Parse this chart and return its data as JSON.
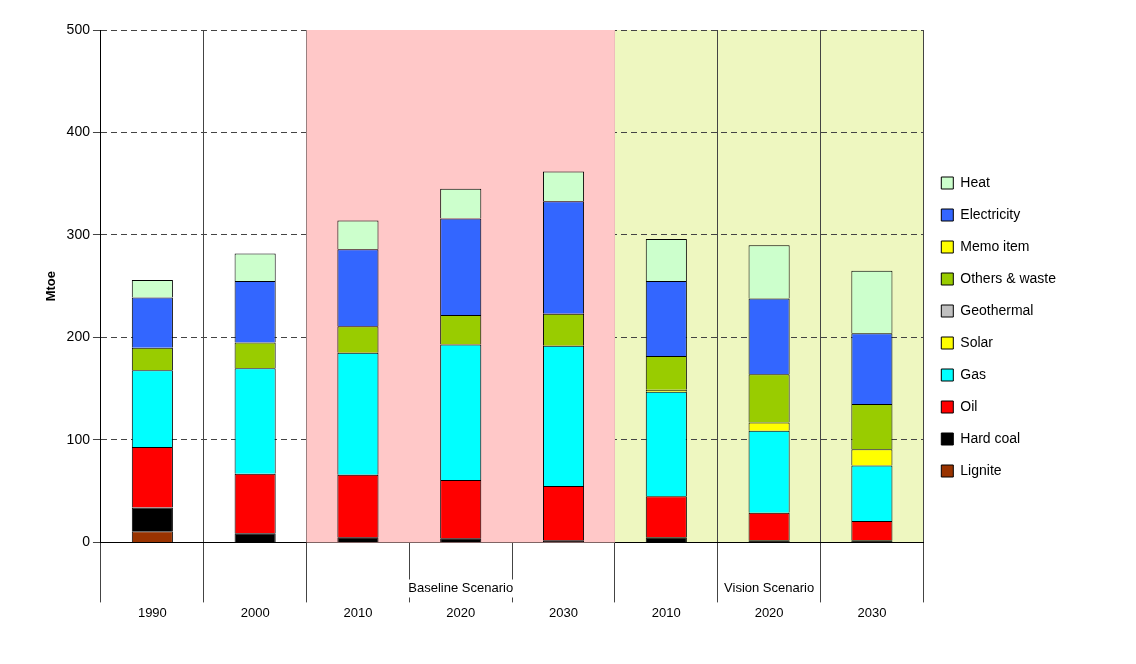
{
  "chart_data": {
    "type": "bar",
    "stacked": true,
    "ylabel": "Mtoe",
    "categories": [
      "1990",
      "2000",
      "2010",
      "2020",
      "2030",
      "2010",
      "2020",
      "2030"
    ],
    "series": [
      {
        "name": "Lignite",
        "color": "#993300",
        "values": [
          11,
          0,
          0,
          0,
          0,
          0,
          0,
          0
        ]
      },
      {
        "name": "Hard coal",
        "color": "#000000",
        "values": [
          23,
          9,
          5,
          4,
          2,
          5,
          2,
          2
        ]
      },
      {
        "name": "Oil",
        "color": "#ff0000",
        "values": [
          59,
          58,
          61,
          57,
          53,
          40,
          27,
          19
        ]
      },
      {
        "name": "Gas",
        "color": "#00ffff",
        "values": [
          75,
          103,
          119,
          132,
          137,
          102,
          80,
          54
        ]
      },
      {
        "name": "Solar",
        "color": "#ffff00",
        "values": [
          0,
          0,
          null,
          null,
          null,
          2,
          8,
          16
        ]
      },
      {
        "name": "Geothermal",
        "color": "#c0c0c0",
        "values": [
          0,
          0,
          0,
          0,
          0,
          0,
          0,
          0
        ]
      },
      {
        "name": "Others & waste",
        "color": "#99cc00",
        "values": [
          22,
          25,
          26,
          29,
          31,
          33,
          47,
          44
        ]
      },
      {
        "name": "Memo item",
        "color": "#ffff00",
        "values": [
          0,
          0,
          0,
          0,
          0,
          0,
          0,
          0
        ]
      },
      {
        "name": "Electricity",
        "color": "#3366ff",
        "values": [
          49,
          60,
          75,
          94,
          110,
          73,
          74,
          69
        ]
      },
      {
        "name": "Heat",
        "color": "#ccffcc",
        "values": [
          17,
          27,
          28,
          29,
          29,
          41,
          52,
          61
        ]
      }
    ],
    "ylim": [
      0,
      500
    ],
    "yticks": [
      0,
      100,
      200,
      300,
      400,
      500
    ],
    "grid": true,
    "legend": "right",
    "bands": [
      {
        "axis": "x",
        "from": "2010",
        "to": "2030",
        "label": "Baseline Scenario",
        "color": "#ffc8c8"
      }
    ],
    "annotations": [
      "Vision Scenario"
    ]
  }
}
